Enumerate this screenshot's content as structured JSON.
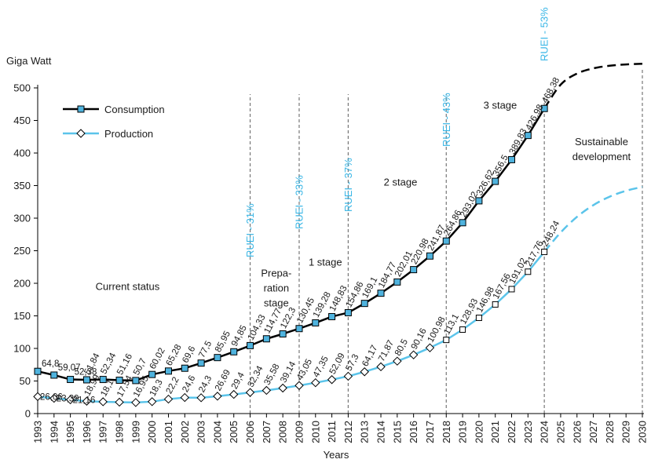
{
  "chart_data": {
    "type": "line",
    "ylabel": "Giga Watt",
    "xlabel": "Years",
    "ylim": [
      0,
      500
    ],
    "y_ticks": [
      0,
      50,
      100,
      150,
      200,
      250,
      300,
      350,
      400,
      450,
      500
    ],
    "x_categories": [
      "1993",
      "1994",
      "1995",
      "1996",
      "1997",
      "1998",
      "1999",
      "2000",
      "2001",
      "2002",
      "2003",
      "2004",
      "2005",
      "2006",
      "2007",
      "2008",
      "2009",
      "2010",
      "2011",
      "2012",
      "2013",
      "2014",
      "2015",
      "2016",
      "2017",
      "2018",
      "2019",
      "2020",
      "2021",
      "2022",
      "2023",
      "2024",
      "2025",
      "2026",
      "2027",
      "2028",
      "2029",
      "2030"
    ],
    "series": [
      {
        "name": "Consumption",
        "color": "#000000",
        "marker_fill": "#4fb3de",
        "x": [
          "1993",
          "1994",
          "1995",
          "1996",
          "1997",
          "1998",
          "1999",
          "2000",
          "2001",
          "2002",
          "2003",
          "2004",
          "2005",
          "2006",
          "2007",
          "2008",
          "2009",
          "2010",
          "2011",
          "2012",
          "2013",
          "2014",
          "2015",
          "2016",
          "2017",
          "2018",
          "2019",
          "2020",
          "2021",
          "2022",
          "2023",
          "2024"
        ],
        "values": [
          64.8,
          59.07,
          52.38,
          51.84,
          52.34,
          51.16,
          50.7,
          60.02,
          65.28,
          69.6,
          77.5,
          85.95,
          94.85,
          104.33,
          114.77,
          122.3,
          130.45,
          139.28,
          148.83,
          154.86,
          169.1,
          184.77,
          202.01,
          220.98,
          241.87,
          264.86,
          293.02,
          326.62,
          356.5,
          389.83,
          426.98,
          468.38
        ],
        "labels": [
          "64,8",
          "59,07",
          "52,38",
          "51,84",
          "52,34",
          "51,16",
          "50,7",
          "60,02",
          "65,28",
          "69,6",
          "77,5",
          "85,95",
          "94,85",
          "104,33",
          "114,77",
          "122,3",
          "130,45",
          "139,28",
          "148,83",
          "154,86",
          "169,1",
          "184,77",
          "202,01",
          "220,98",
          "241,87",
          "264,86",
          "293,02",
          "326,62",
          "356,5",
          "389,83",
          "426,98",
          "468,38"
        ],
        "projection": {
          "style": "dashed",
          "x": [
            "2024",
            "2025",
            "2026",
            "2027",
            "2028",
            "2029",
            "2030"
          ],
          "values": [
            468.38,
            505,
            522,
            530,
            534,
            536,
            537
          ]
        }
      },
      {
        "name": "Production",
        "color": "#5bc4ea",
        "marker_fill": "#ffffff",
        "x": [
          "1993",
          "1994",
          "1995",
          "1996",
          "1997",
          "1998",
          "1999",
          "2000",
          "2001",
          "2002",
          "2003",
          "2004",
          "2005",
          "2006",
          "2007",
          "2008",
          "2009",
          "2010",
          "2011",
          "2012",
          "2013",
          "2014",
          "2015",
          "2016",
          "2017",
          "2018",
          "2019",
          "2020",
          "2021",
          "2022",
          "2023",
          "2024"
        ],
        "values": [
          26.06,
          23.39,
          21.16,
          18.99,
          18.1,
          17.54,
          16.95,
          18.3,
          22.2,
          24.6,
          24.3,
          26.69,
          29.4,
          32.34,
          35.58,
          39.14,
          43.05,
          47.35,
          52.09,
          57.3,
          64.17,
          71.87,
          80.5,
          90.16,
          100.98,
          113.1,
          128.93,
          146.98,
          167.56,
          191.02,
          217.76,
          248.24
        ],
        "labels": [
          "26,06",
          "23,39",
          "21,16",
          "18,99",
          "18,1",
          "17,54",
          "16,95",
          "18,3",
          "22,2",
          "24,6",
          "24,3",
          "26,69",
          "29,4",
          "32,34",
          "35,58",
          "39,14",
          "43,05",
          "47,35",
          "52,09",
          "57,3",
          "64,17",
          "71,87",
          "80,5",
          "90,16",
          "100,98",
          "113,1",
          "128,93",
          "146,98",
          "167,56",
          "191,02",
          "217,76",
          "248,24"
        ],
        "projection": {
          "style": "dashed",
          "x": [
            "2024",
            "2025",
            "2026",
            "2027",
            "2028",
            "2029",
            "2030"
          ],
          "values": [
            248.24,
            278,
            302,
            320,
            333,
            342,
            348
          ]
        }
      }
    ],
    "markers": [
      {
        "year": "2006",
        "label": "RUEI - 31%"
      },
      {
        "year": "2009",
        "label": "RUEI - 33%"
      },
      {
        "year": "2012",
        "label": "RUEI - 37%"
      },
      {
        "year": "2018",
        "label": "RUEI - 43%"
      },
      {
        "year": "2024",
        "label": "RUEI - 53%"
      },
      {
        "year": "2030",
        "label": ""
      }
    ],
    "annotations": [
      {
        "lines": [
          "Current status"
        ],
        "year": 1998.5,
        "y": 190
      },
      {
        "lines": [
          "Prepa-",
          "ration",
          "stage"
        ],
        "year": 2007.6,
        "y": 210
      },
      {
        "lines": [
          "1 stage"
        ],
        "year": 2010.6,
        "y": 227
      },
      {
        "lines": [
          "2 stage"
        ],
        "year": 2015.2,
        "y": 350
      },
      {
        "lines": [
          "3 stage"
        ],
        "year": 2021.3,
        "y": 468
      },
      {
        "lines": [
          "Sustainable",
          "development"
        ],
        "year": 2027.5,
        "y": 412
      }
    ],
    "legend": {
      "placement": "top-left"
    }
  }
}
